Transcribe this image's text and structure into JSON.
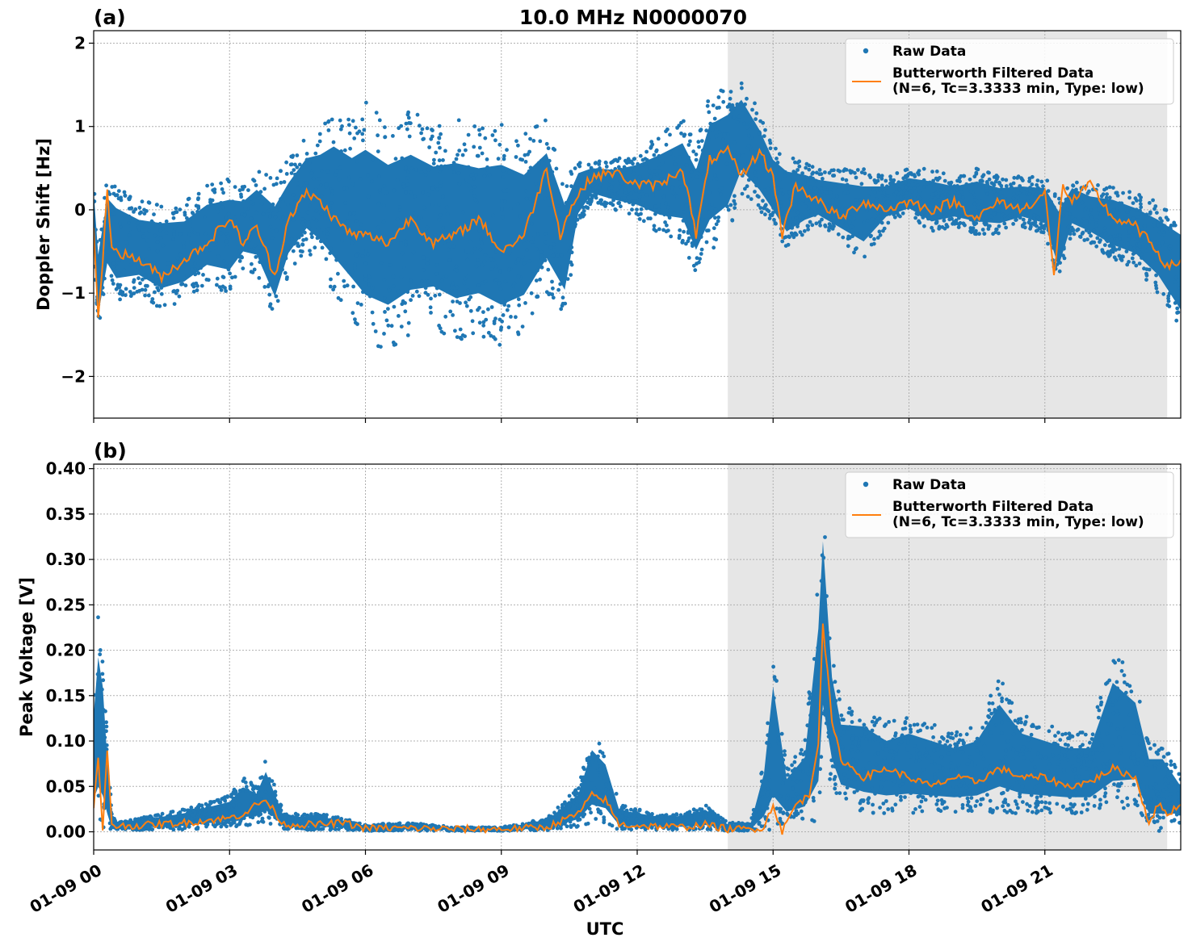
{
  "chart_data": [
    {
      "type": "scatter",
      "panel_label": "(a)",
      "title": "10.0 MHz N0000070",
      "xlabel": "",
      "ylabel": "Doppler Shift [Hz]",
      "xlim": [
        0,
        24
      ],
      "ylim": [
        -2.5,
        2.15
      ],
      "yticks": [
        -2,
        -1,
        0,
        1,
        2
      ],
      "ytick_labels": [
        "−2",
        "−1",
        "0",
        "1",
        "2"
      ],
      "grid": true,
      "shaded_region": [
        14.0,
        23.7
      ],
      "legend": {
        "placement": "top-right",
        "entries": [
          {
            "label": "Raw Data",
            "marker": "dot",
            "color": "#1f77b4"
          },
          {
            "label": "Butterworth Filtered Data\n(N=6, Tc=3.3333 min, Type: low)",
            "marker": "line",
            "color": "#ff7f0e"
          }
        ]
      },
      "series": [
        {
          "name": "Raw Data",
          "color": "#1f77b4",
          "envelope": {
            "x": [
              0.0,
              0.1,
              0.3,
              0.5,
              1.0,
              1.5,
              2.0,
              2.5,
              3.0,
              3.3,
              3.6,
              4.0,
              4.3,
              4.7,
              5.0,
              5.3,
              5.7,
              6.0,
              6.5,
              7.0,
              7.5,
              8.0,
              8.5,
              9.0,
              9.5,
              10.0,
              10.4,
              10.7,
              11.0,
              11.5,
              12.0,
              12.5,
              13.0,
              13.3,
              13.6,
              14.0,
              14.3,
              14.7,
              15.0,
              15.3,
              15.7,
              16.0,
              16.5,
              17.0,
              17.5,
              18.0,
              18.5,
              19.0,
              19.5,
              20.0,
              20.5,
              21.0,
              21.3,
              21.6,
              22.0,
              22.5,
              23.0,
              23.5,
              24.0
            ],
            "low": [
              -0.5,
              -1.5,
              -0.9,
              -1.1,
              -1.0,
              -1.2,
              -1.1,
              -0.9,
              -1.0,
              -0.7,
              -0.8,
              -1.4,
              -0.8,
              -0.5,
              -0.7,
              -1.0,
              -1.3,
              -1.6,
              -1.7,
              -1.5,
              -1.4,
              -1.6,
              -1.5,
              -1.7,
              -1.5,
              -1.0,
              -1.3,
              -0.2,
              0.1,
              0.0,
              -0.1,
              -0.3,
              -0.4,
              -0.8,
              -0.5,
              -0.3,
              0.2,
              0.0,
              -0.2,
              -0.5,
              -0.3,
              -0.2,
              -0.4,
              -0.6,
              -0.2,
              -0.1,
              -0.3,
              -0.2,
              -0.3,
              -0.3,
              -0.2,
              -0.3,
              -0.9,
              -0.3,
              -0.4,
              -0.6,
              -0.7,
              -1.0,
              -1.5
            ],
            "high": [
              0.4,
              -0.3,
              0.4,
              0.3,
              0.1,
              0.1,
              0.1,
              0.3,
              0.4,
              0.3,
              0.5,
              0.4,
              0.6,
              0.9,
              1.0,
              1.2,
              1.1,
              1.3,
              1.1,
              1.2,
              1.0,
              1.1,
              1.0,
              1.1,
              0.9,
              1.1,
              0.4,
              0.6,
              0.6,
              0.6,
              0.7,
              0.9,
              1.1,
              0.8,
              1.4,
              1.5,
              1.6,
              1.2,
              0.8,
              0.7,
              0.6,
              0.5,
              0.5,
              0.5,
              0.4,
              0.5,
              0.5,
              0.4,
              0.5,
              0.4,
              0.4,
              0.4,
              0.2,
              0.4,
              0.3,
              0.3,
              0.2,
              0.1,
              0.0
            ]
          }
        },
        {
          "name": "Butterworth Filtered Data\n(N=6, Tc=3.3333 min, Type: low)",
          "color": "#ff7f0e",
          "x": [
            0.0,
            0.1,
            0.2,
            0.3,
            0.4,
            0.5,
            1.0,
            1.5,
            2.0,
            2.5,
            3.0,
            3.3,
            3.6,
            4.0,
            4.3,
            4.7,
            5.0,
            5.3,
            5.7,
            6.0,
            6.5,
            7.0,
            7.5,
            8.0,
            8.5,
            9.0,
            9.5,
            10.0,
            10.3,
            10.6,
            11.0,
            11.5,
            12.0,
            12.5,
            13.0,
            13.3,
            13.6,
            14.0,
            14.3,
            14.7,
            15.0,
            15.2,
            15.5,
            16.0,
            16.5,
            17.0,
            17.5,
            18.0,
            18.5,
            19.0,
            19.5,
            20.0,
            20.5,
            21.0,
            21.2,
            21.4,
            21.6,
            22.0,
            22.5,
            23.0,
            23.5,
            23.7,
            24.0
          ],
          "y": [
            -0.2,
            -1.3,
            -0.6,
            0.2,
            -0.4,
            -0.5,
            -0.6,
            -0.8,
            -0.6,
            -0.4,
            -0.1,
            -0.4,
            -0.2,
            -0.8,
            -0.1,
            0.2,
            0.1,
            -0.1,
            -0.3,
            -0.3,
            -0.4,
            -0.1,
            -0.4,
            -0.3,
            -0.1,
            -0.5,
            -0.3,
            0.5,
            -0.3,
            0.1,
            0.4,
            0.45,
            0.3,
            0.3,
            0.5,
            -0.3,
            0.6,
            0.7,
            0.4,
            0.7,
            0.4,
            -0.3,
            0.3,
            0.1,
            -0.1,
            0.1,
            0.0,
            0.1,
            0.0,
            0.1,
            -0.1,
            0.1,
            0.0,
            0.2,
            -0.8,
            0.3,
            0.1,
            0.3,
            -0.1,
            -0.2,
            -0.5,
            -0.7,
            -0.6
          ]
        }
      ]
    },
    {
      "type": "scatter",
      "panel_label": "(b)",
      "title": "",
      "xlabel": "UTC",
      "ylabel": "Peak Voltage [V]",
      "xlim": [
        0,
        24
      ],
      "ylim": [
        -0.02,
        0.405
      ],
      "yticks": [
        0.0,
        0.05,
        0.1,
        0.15,
        0.2,
        0.25,
        0.3,
        0.35,
        0.4
      ],
      "ytick_labels": [
        "0.00",
        "0.05",
        "0.10",
        "0.15",
        "0.20",
        "0.25",
        "0.30",
        "0.35",
        "0.40"
      ],
      "xticks": [
        0,
        3,
        6,
        9,
        12,
        15,
        18,
        21
      ],
      "xtick_labels": [
        "01-09 00",
        "01-09 03",
        "01-09 06",
        "01-09 09",
        "01-09 12",
        "01-09 15",
        "01-09 18",
        "01-09 21"
      ],
      "grid": true,
      "shaded_region": [
        14.0,
        23.7
      ],
      "legend": {
        "placement": "top-right",
        "entries": [
          {
            "label": "Raw Data",
            "marker": "dot",
            "color": "#1f77b4"
          },
          {
            "label": "Butterworth Filtered Data\n(N=6, Tc=3.3333 min, Type: low)",
            "marker": "line",
            "color": "#ff7f0e"
          }
        ]
      },
      "series": [
        {
          "name": "Raw Data",
          "color": "#1f77b4",
          "envelope": {
            "x": [
              0.0,
              0.1,
              0.2,
              0.3,
              0.4,
              0.5,
              1.0,
              2.0,
              3.0,
              3.3,
              3.6,
              3.8,
              4.2,
              5.0,
              5.5,
              6.0,
              7.0,
              8.0,
              9.0,
              10.0,
              10.7,
              11.0,
              11.3,
              11.6,
              12.0,
              12.5,
              13.0,
              13.5,
              14.0,
              14.5,
              14.8,
              15.0,
              15.3,
              15.7,
              16.0,
              16.1,
              16.3,
              16.5,
              17.0,
              17.5,
              18.0,
              18.5,
              19.0,
              19.5,
              20.0,
              20.5,
              21.0,
              21.5,
              22.0,
              22.5,
              23.0,
              23.3,
              23.6,
              24.0
            ],
            "low": [
              0.005,
              0.002,
              0.0,
              0.0,
              0.0,
              0.003,
              0.002,
              0.002,
              0.005,
              0.005,
              0.01,
              0.01,
              0.003,
              0.002,
              0.002,
              0.001,
              0.001,
              0.001,
              0.001,
              0.001,
              0.005,
              0.01,
              0.01,
              0.002,
              0.002,
              0.002,
              0.002,
              0.002,
              0.001,
              0.001,
              0.002,
              0.0,
              0.01,
              0.01,
              0.0,
              0.08,
              0.05,
              0.03,
              0.02,
              0.02,
              0.02,
              0.02,
              0.02,
              0.02,
              0.02,
              0.02,
              0.02,
              0.02,
              0.02,
              0.02,
              0.03,
              0.0,
              0.0,
              0.01
            ],
            "high": [
              0.16,
              0.24,
              0.2,
              0.1,
              0.02,
              0.01,
              0.015,
              0.025,
              0.04,
              0.06,
              0.05,
              0.08,
              0.02,
              0.02,
              0.015,
              0.008,
              0.01,
              0.005,
              0.005,
              0.015,
              0.05,
              0.11,
              0.09,
              0.03,
              0.025,
              0.02,
              0.02,
              0.03,
              0.01,
              0.01,
              0.08,
              0.2,
              0.07,
              0.1,
              0.28,
              0.38,
              0.2,
              0.14,
              0.14,
              0.12,
              0.13,
              0.12,
              0.11,
              0.12,
              0.17,
              0.13,
              0.12,
              0.11,
              0.11,
              0.2,
              0.17,
              0.1,
              0.1,
              0.06
            ]
          }
        },
        {
          "name": "Butterworth Filtered Data\n(N=6, Tc=3.3333 min, Type: low)",
          "color": "#ff7f0e",
          "x": [
            0.0,
            0.1,
            0.2,
            0.3,
            0.4,
            0.5,
            1.0,
            2.0,
            3.0,
            3.3,
            3.6,
            3.8,
            4.2,
            5.0,
            5.5,
            6.0,
            7.0,
            8.0,
            9.0,
            10.0,
            10.7,
            11.0,
            11.3,
            11.6,
            12.0,
            12.5,
            13.0,
            13.5,
            14.0,
            14.5,
            14.8,
            15.0,
            15.2,
            15.5,
            15.8,
            16.0,
            16.1,
            16.3,
            16.5,
            17.0,
            17.5,
            18.0,
            18.5,
            19.0,
            19.5,
            20.0,
            20.5,
            21.0,
            21.5,
            22.0,
            22.5,
            23.0,
            23.3,
            23.5,
            23.7,
            24.0
          ],
          "y": [
            0.03,
            0.08,
            0.0,
            0.09,
            0.01,
            0.006,
            0.007,
            0.01,
            0.015,
            0.02,
            0.03,
            0.035,
            0.008,
            0.008,
            0.01,
            0.004,
            0.004,
            0.003,
            0.003,
            0.005,
            0.02,
            0.04,
            0.035,
            0.008,
            0.007,
            0.006,
            0.005,
            0.008,
            0.003,
            0.003,
            0.005,
            0.03,
            0.0,
            0.03,
            0.04,
            0.1,
            0.23,
            0.12,
            0.08,
            0.06,
            0.07,
            0.06,
            0.05,
            0.06,
            0.055,
            0.07,
            0.06,
            0.06,
            0.05,
            0.055,
            0.07,
            0.06,
            0.01,
            0.03,
            0.02,
            0.03
          ]
        }
      ]
    }
  ]
}
